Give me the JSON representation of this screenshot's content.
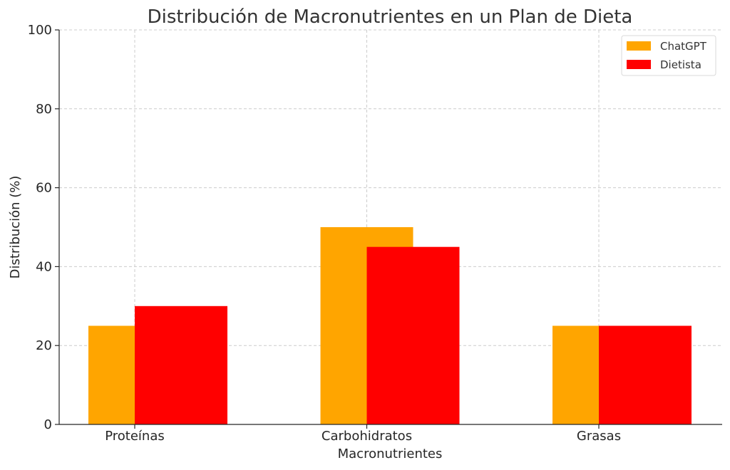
{
  "chart_data": {
    "type": "bar",
    "title": "Distribución de Macronutrientes en un Plan de Dieta",
    "xlabel": "Macronutrientes",
    "ylabel": "Distribución (%)",
    "categories": [
      "Proteínas",
      "Carbohidratos",
      "Grasas"
    ],
    "series": [
      {
        "name": "ChatGPT",
        "values": [
          25,
          50,
          25
        ],
        "color": "#FFA500"
      },
      {
        "name": "Dietista",
        "values": [
          30,
          45,
          25
        ],
        "color": "#FF0000"
      }
    ],
    "ylim": [
      0,
      100
    ],
    "yticks": [
      0,
      20,
      40,
      60,
      80,
      100
    ],
    "grid": true,
    "legend_position": "top-right"
  }
}
